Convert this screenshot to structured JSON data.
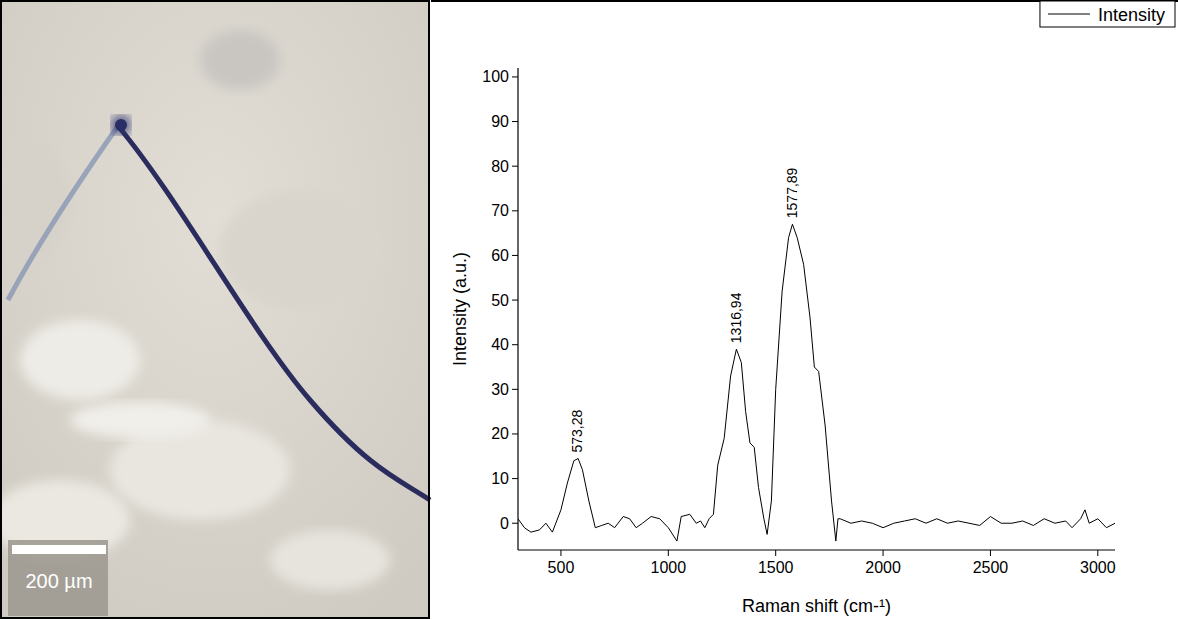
{
  "chart_data": {
    "type": "line",
    "x_label": "Raman shift (cm-¹)",
    "y_label": "Intensity (a.u.)",
    "xlim": [
      300,
      3080
    ],
    "ylim": [
      -6,
      102
    ],
    "xticks": [
      500,
      1000,
      1500,
      2000,
      2500,
      3000
    ],
    "yticks": [
      0,
      10,
      20,
      30,
      40,
      50,
      60,
      70,
      80,
      90,
      100
    ],
    "legend": "top-right",
    "grid": false,
    "x": [
      300,
      330,
      360,
      400,
      430,
      460,
      500,
      530,
      560,
      580,
      600,
      630,
      660,
      690,
      720,
      750,
      790,
      820,
      850,
      880,
      920,
      960,
      1000,
      1040,
      1060,
      1100,
      1130,
      1150,
      1170,
      1190,
      1210,
      1230,
      1260,
      1290,
      1317,
      1340,
      1360,
      1380,
      1400,
      1420,
      1445,
      1460,
      1480,
      1500,
      1530,
      1560,
      1578,
      1600,
      1630,
      1660,
      1680,
      1700,
      1730,
      1760,
      1780,
      1790,
      1800,
      1850,
      1900,
      1950,
      2000,
      2050,
      2100,
      2150,
      2200,
      2250,
      2300,
      2350,
      2400,
      2450,
      2500,
      2550,
      2600,
      2650,
      2700,
      2750,
      2800,
      2850,
      2880,
      2920,
      2940,
      2960,
      3000,
      3040,
      3080
    ],
    "series": [
      {
        "name": "Intensity",
        "color": "#000000",
        "line_style": "solid",
        "values": [
          1,
          -1,
          -2,
          -1.5,
          0,
          -2,
          3,
          9,
          14,
          14.5,
          12,
          5,
          -1,
          -0.5,
          0,
          -1,
          1.5,
          1,
          -1,
          0,
          1.5,
          1,
          -1,
          -4,
          1.5,
          2,
          0,
          0.5,
          -1,
          1,
          2,
          13,
          19,
          33,
          39,
          36,
          25,
          18,
          17,
          8,
          1,
          -2.5,
          5,
          30,
          52,
          64,
          67,
          64,
          58,
          46,
          35,
          34,
          22,
          5,
          -4,
          1,
          1,
          0,
          0.5,
          0,
          -1,
          0,
          0.5,
          1,
          0,
          1,
          0,
          0.5,
          0,
          -0.5,
          1.5,
          0,
          0,
          0.5,
          -0.5,
          1,
          0,
          0.5,
          -1,
          1,
          3,
          0,
          1,
          -1,
          0
        ]
      }
    ],
    "annotations": [
      {
        "text": "573,28",
        "x": 573.28,
        "y": 14.5
      },
      {
        "text": "1316,94",
        "x": 1316.94,
        "y": 39
      },
      {
        "text": "1577,89",
        "x": 1577.89,
        "y": 67
      }
    ]
  },
  "image": {
    "scale_bar_label": "200 µm"
  }
}
